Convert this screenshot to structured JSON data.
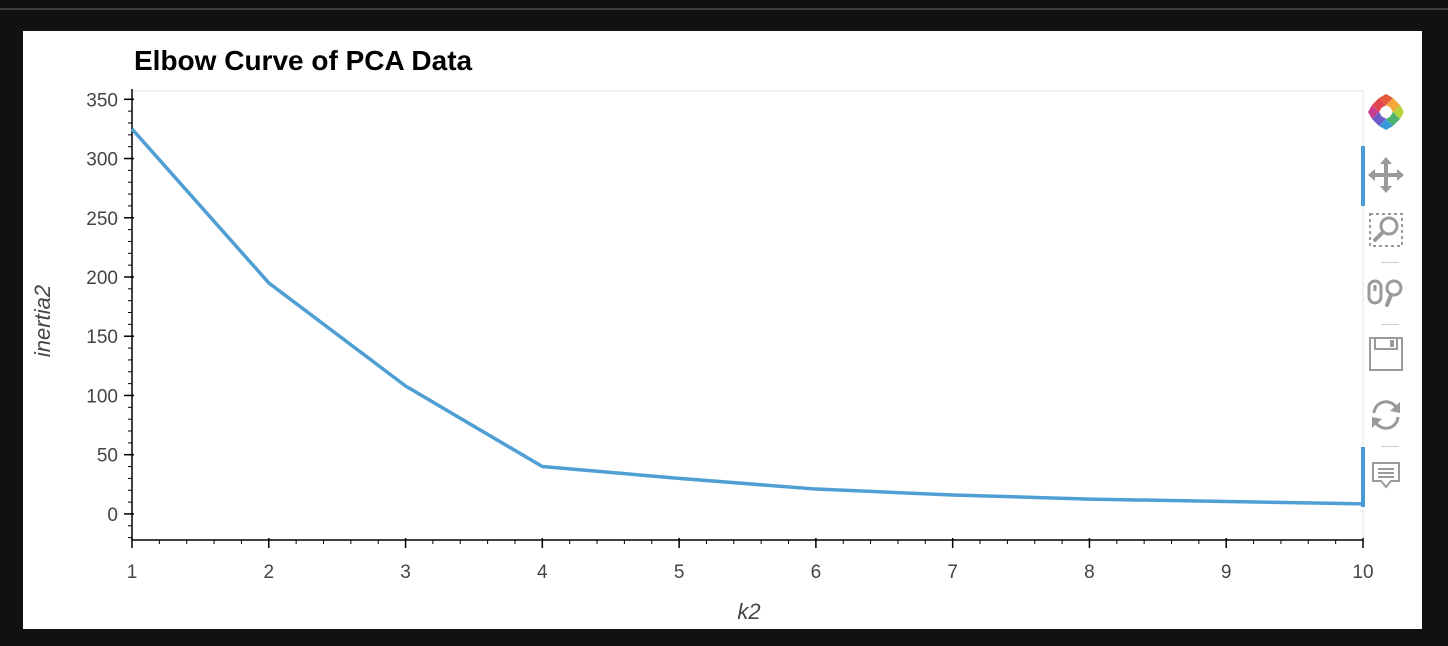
{
  "chart_data": {
    "type": "line",
    "title": "Elbow Curve of PCA Data",
    "xlabel": "k2",
    "ylabel": "inertia2",
    "x": [
      1,
      2,
      3,
      4,
      5,
      6,
      7,
      8,
      9,
      10
    ],
    "series": [
      {
        "values": [
          325,
          195,
          108,
          40,
          30,
          21,
          16,
          12.5,
          10.5,
          8.5
        ]
      }
    ],
    "xlim": [
      1,
      10
    ],
    "ylim": [
      -22,
      357
    ],
    "xticks": [
      "1",
      "2",
      "3",
      "4",
      "5",
      "6",
      "7",
      "8",
      "9",
      "10"
    ],
    "yticks": [
      "0",
      "50",
      "100",
      "150",
      "200",
      "250",
      "300",
      "350"
    ],
    "ytick_values": [
      0,
      50,
      100,
      150,
      200,
      250,
      300,
      350
    ],
    "grid": false,
    "line_color": "#4f9fd5"
  },
  "toolbar": {
    "tools": [
      {
        "name": "bokeh-logo-icon",
        "title": "Bokeh"
      },
      {
        "name": "pan-icon",
        "title": "Pan",
        "active": true
      },
      {
        "name": "box-zoom-icon",
        "title": "Box Zoom"
      },
      {
        "name": "wheel-zoom-icon",
        "title": "Wheel Zoom"
      },
      {
        "name": "save-icon",
        "title": "Save"
      },
      {
        "name": "reset-icon",
        "title": "Reset"
      },
      {
        "name": "hover-icon",
        "title": "Hover",
        "active": true
      }
    ]
  }
}
